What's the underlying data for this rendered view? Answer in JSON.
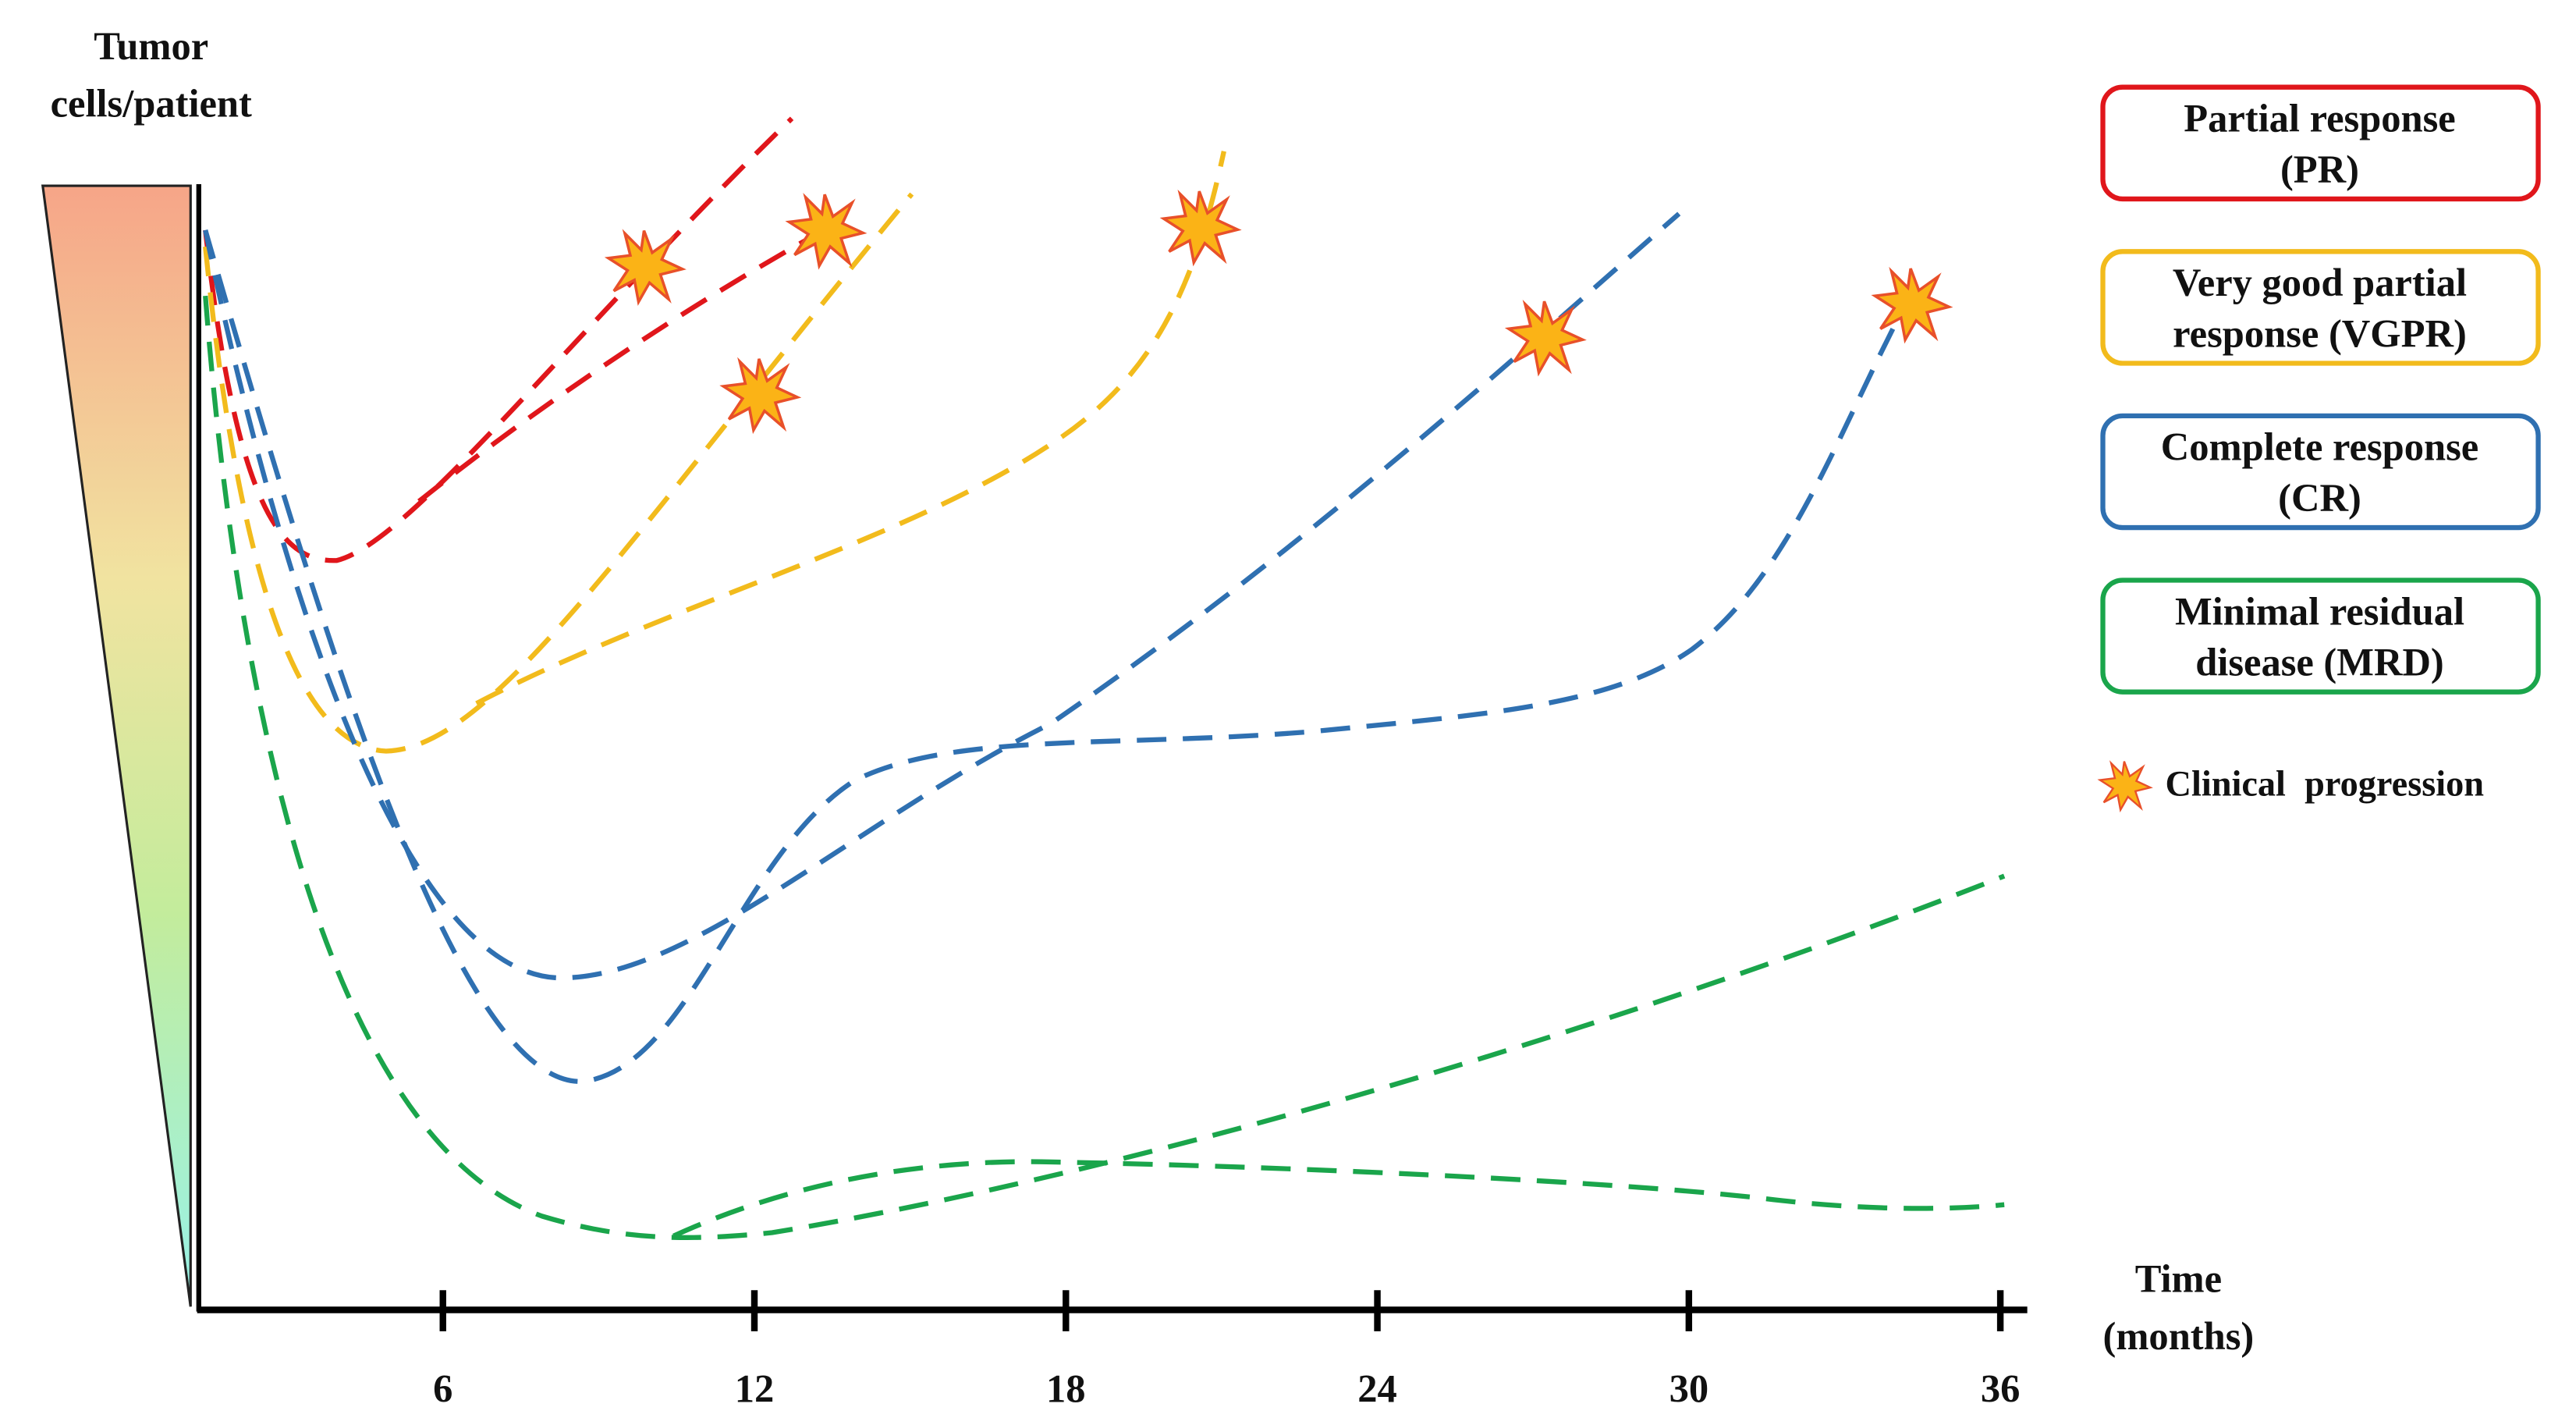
{
  "y_axis": {
    "label": [
      "Tumor",
      "cells/patient"
    ]
  },
  "x_axis": {
    "label": [
      "Time",
      "(months)"
    ],
    "ticks": [
      6,
      12,
      18,
      24,
      30,
      36
    ]
  },
  "legend": {
    "items": [
      {
        "lines": [
          "Partial response",
          "(PR)"
        ],
        "color": "#e0161b"
      },
      {
        "lines": [
          "Very good partial",
          "response (VGPR)"
        ],
        "color": "#f2bb1c"
      },
      {
        "lines": [
          "Complete response",
          "(CR)"
        ],
        "color": "#2f70b1"
      },
      {
        "lines": [
          "Minimal residual",
          "disease (MRD)"
        ],
        "color": "#1aa54b"
      }
    ],
    "marker_label": "Clinical progression"
  }
}
